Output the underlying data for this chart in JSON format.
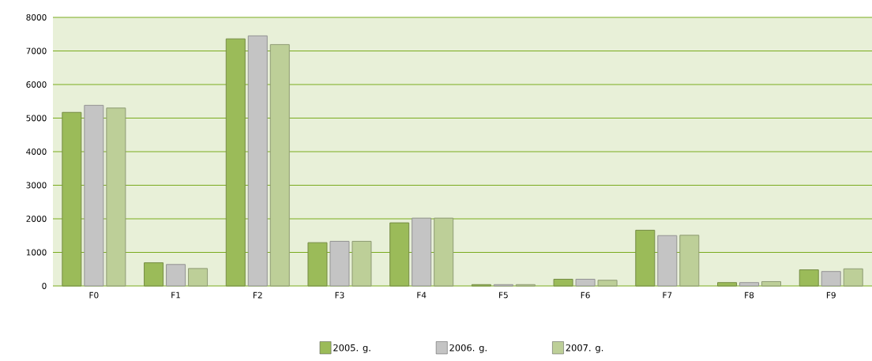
{
  "chart_data": {
    "type": "bar",
    "categories": [
      "F0",
      "F1",
      "F2",
      "F3",
      "F4",
      "F5",
      "F6",
      "F7",
      "F8",
      "F9"
    ],
    "series": [
      {
        "name": "2005. g.",
        "color": "#9bbb59",
        "values": [
          5170,
          690,
          7360,
          1290,
          1880,
          40,
          200,
          1660,
          100,
          480
        ]
      },
      {
        "name": "2006. g.",
        "color": "#c4c4c4",
        "values": [
          5380,
          640,
          7450,
          1330,
          2020,
          40,
          200,
          1500,
          100,
          430
        ]
      },
      {
        "name": "2007. g.",
        "color": "#bdcf98",
        "values": [
          5300,
          520,
          7190,
          1330,
          2020,
          40,
          170,
          1510,
          130,
          510
        ]
      }
    ],
    "ylim": [
      0,
      8000
    ],
    "yticks": [
      0,
      1000,
      2000,
      3000,
      4000,
      5000,
      6000,
      7000,
      8000
    ],
    "grid": "y",
    "legend": "bottom"
  }
}
